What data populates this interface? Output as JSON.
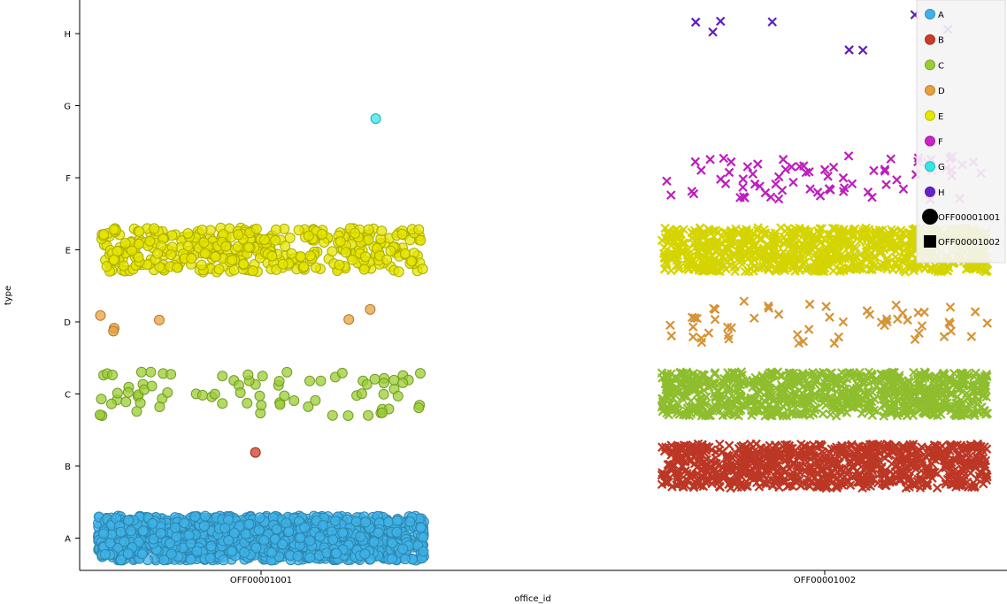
{
  "chart_data": {
    "type": "scatter",
    "title": "",
    "xlabel": "office_id",
    "ylabel": "type",
    "x_categories": [
      "OFF00001001",
      "OFF00001002"
    ],
    "y_categories": [
      "A",
      "B",
      "C",
      "D",
      "E",
      "F",
      "G",
      "H"
    ],
    "grid": false,
    "legend_position": "top-right",
    "jitter": true,
    "series": [
      {
        "name": "A",
        "color": "#3fb3e8",
        "counts": {
          "OFF00001001": 2500,
          "OFF00001002": 0
        }
      },
      {
        "name": "B",
        "color": "#cc3c28",
        "counts": {
          "OFF00001001": 1,
          "OFF00001002": 900
        }
      },
      {
        "name": "C",
        "color": "#9acd32",
        "counts": {
          "OFF00001001": 80,
          "OFF00001002": 900
        }
      },
      {
        "name": "D",
        "color": "#e8a03c",
        "counts": {
          "OFF00001001": 6,
          "OFF00001002": 55
        }
      },
      {
        "name": "E",
        "color": "#e6e600",
        "counts": {
          "OFF00001001": 400,
          "OFF00001002": 6000
        }
      },
      {
        "name": "F",
        "color": "#cc22cc",
        "counts": {
          "OFF00001001": 0,
          "OFF00001002": 75
        }
      },
      {
        "name": "G",
        "color": "#33e6e6",
        "counts": {
          "OFF00001001": 1,
          "OFF00001002": 0
        }
      },
      {
        "name": "H",
        "color": "#6622cc",
        "counts": {
          "OFF00001001": 0,
          "OFF00001002": 8
        }
      }
    ],
    "shape_legend": [
      {
        "name": "OFF00001001",
        "shape": "circle"
      },
      {
        "name": "OFF00001002",
        "shape": "square"
      }
    ]
  }
}
